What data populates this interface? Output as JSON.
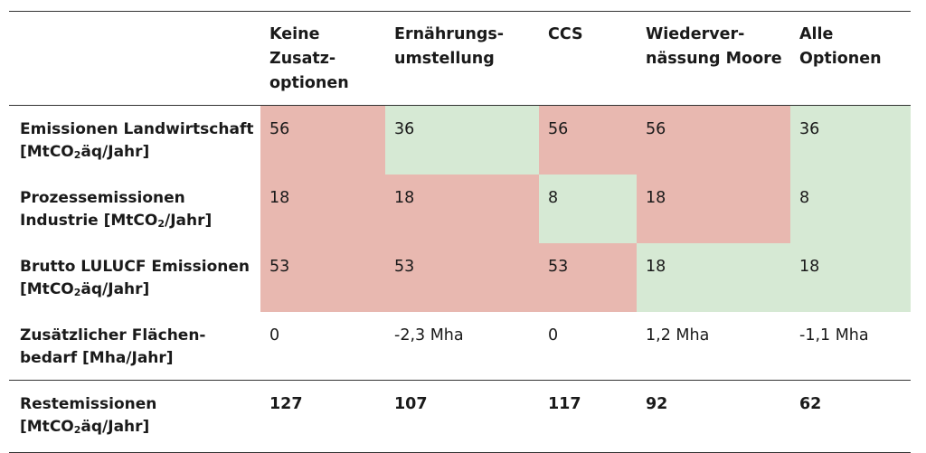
{
  "table": {
    "columns": [
      "Keine\nZusatz-\noptionen",
      "Ernährungs-\numstellung",
      "CCS",
      "Wiederver-\nnässung Moore",
      "Alle\nOptionen"
    ],
    "rows": [
      {
        "label_pre": "Emissionen Landwirtschaft\n[MtCO",
        "label_sub": "2",
        "label_post": "äq/Jahr]",
        "values": [
          "56",
          "36",
          "56",
          "56",
          "36"
        ],
        "highlight": [
          "red",
          "green",
          "red",
          "red",
          "green"
        ]
      },
      {
        "label_pre": "Prozessemissionen\nIndustrie [MtCO",
        "label_sub": "2",
        "label_post": "/Jahr]",
        "values": [
          "18",
          "18",
          "8",
          "18",
          "8"
        ],
        "highlight": [
          "red",
          "red",
          "green",
          "red",
          "green"
        ]
      },
      {
        "label_pre": "Brutto LULUCF Emissionen\n[MtCO",
        "label_sub": "2",
        "label_post": "äq/Jahr]",
        "values": [
          "53",
          "53",
          "53",
          "18",
          "18"
        ],
        "highlight": [
          "red",
          "red",
          "red",
          "green",
          "green"
        ]
      },
      {
        "label_pre": "Zusätzlicher Flächen-\nbedarf [Mha/Jahr]",
        "label_sub": "",
        "label_post": "",
        "values": [
          "0",
          "-2,3 Mha",
          "0",
          "1,2 Mha",
          "-1,1 Mha"
        ],
        "highlight": [
          "none",
          "none",
          "none",
          "none",
          "none"
        ]
      },
      {
        "label_pre": "Restemissionen\n[MtCO",
        "label_sub": "2",
        "label_post": "äq/Jahr]",
        "values": [
          "127",
          "107",
          "117",
          "92",
          "62"
        ],
        "highlight": [
          "none",
          "none",
          "none",
          "none",
          "none"
        ]
      }
    ],
    "colors": {
      "red": "#e8b8b0",
      "green": "#d6e9d4",
      "rule": "#333333"
    }
  }
}
